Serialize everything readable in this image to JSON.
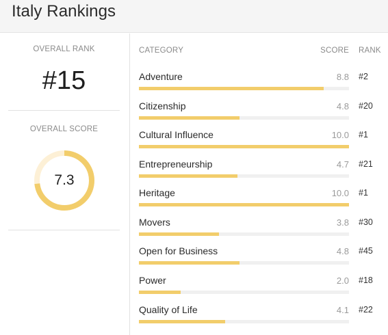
{
  "header": {
    "title": "Italy Rankings"
  },
  "overall": {
    "rank_label": "OVERALL RANK",
    "rank_value": "#15",
    "score_label": "OVERALL SCORE",
    "score_value": "7.3",
    "score_fraction": 0.73
  },
  "table": {
    "headers": {
      "category": "CATEGORY",
      "score": "SCORE",
      "rank": "RANK"
    },
    "rows": [
      {
        "name": "Adventure",
        "score": "8.8",
        "rank": "#2"
      },
      {
        "name": "Citizenship",
        "score": "4.8",
        "rank": "#20"
      },
      {
        "name": "Cultural Influence",
        "score": "10.0",
        "rank": "#1"
      },
      {
        "name": "Entrepreneurship",
        "score": "4.7",
        "rank": "#21"
      },
      {
        "name": "Heritage",
        "score": "10.0",
        "rank": "#1"
      },
      {
        "name": "Movers",
        "score": "3.8",
        "rank": "#30"
      },
      {
        "name": "Open for Business",
        "score": "4.8",
        "rank": "#45"
      },
      {
        "name": "Power",
        "score": "2.0",
        "rank": "#18"
      },
      {
        "name": "Quality of Life",
        "score": "4.1",
        "rank": "#22"
      }
    ]
  },
  "colors": {
    "accent": "#f2cd6b",
    "accent_light": "#fdf0d6",
    "track": "#f0f0f0"
  }
}
